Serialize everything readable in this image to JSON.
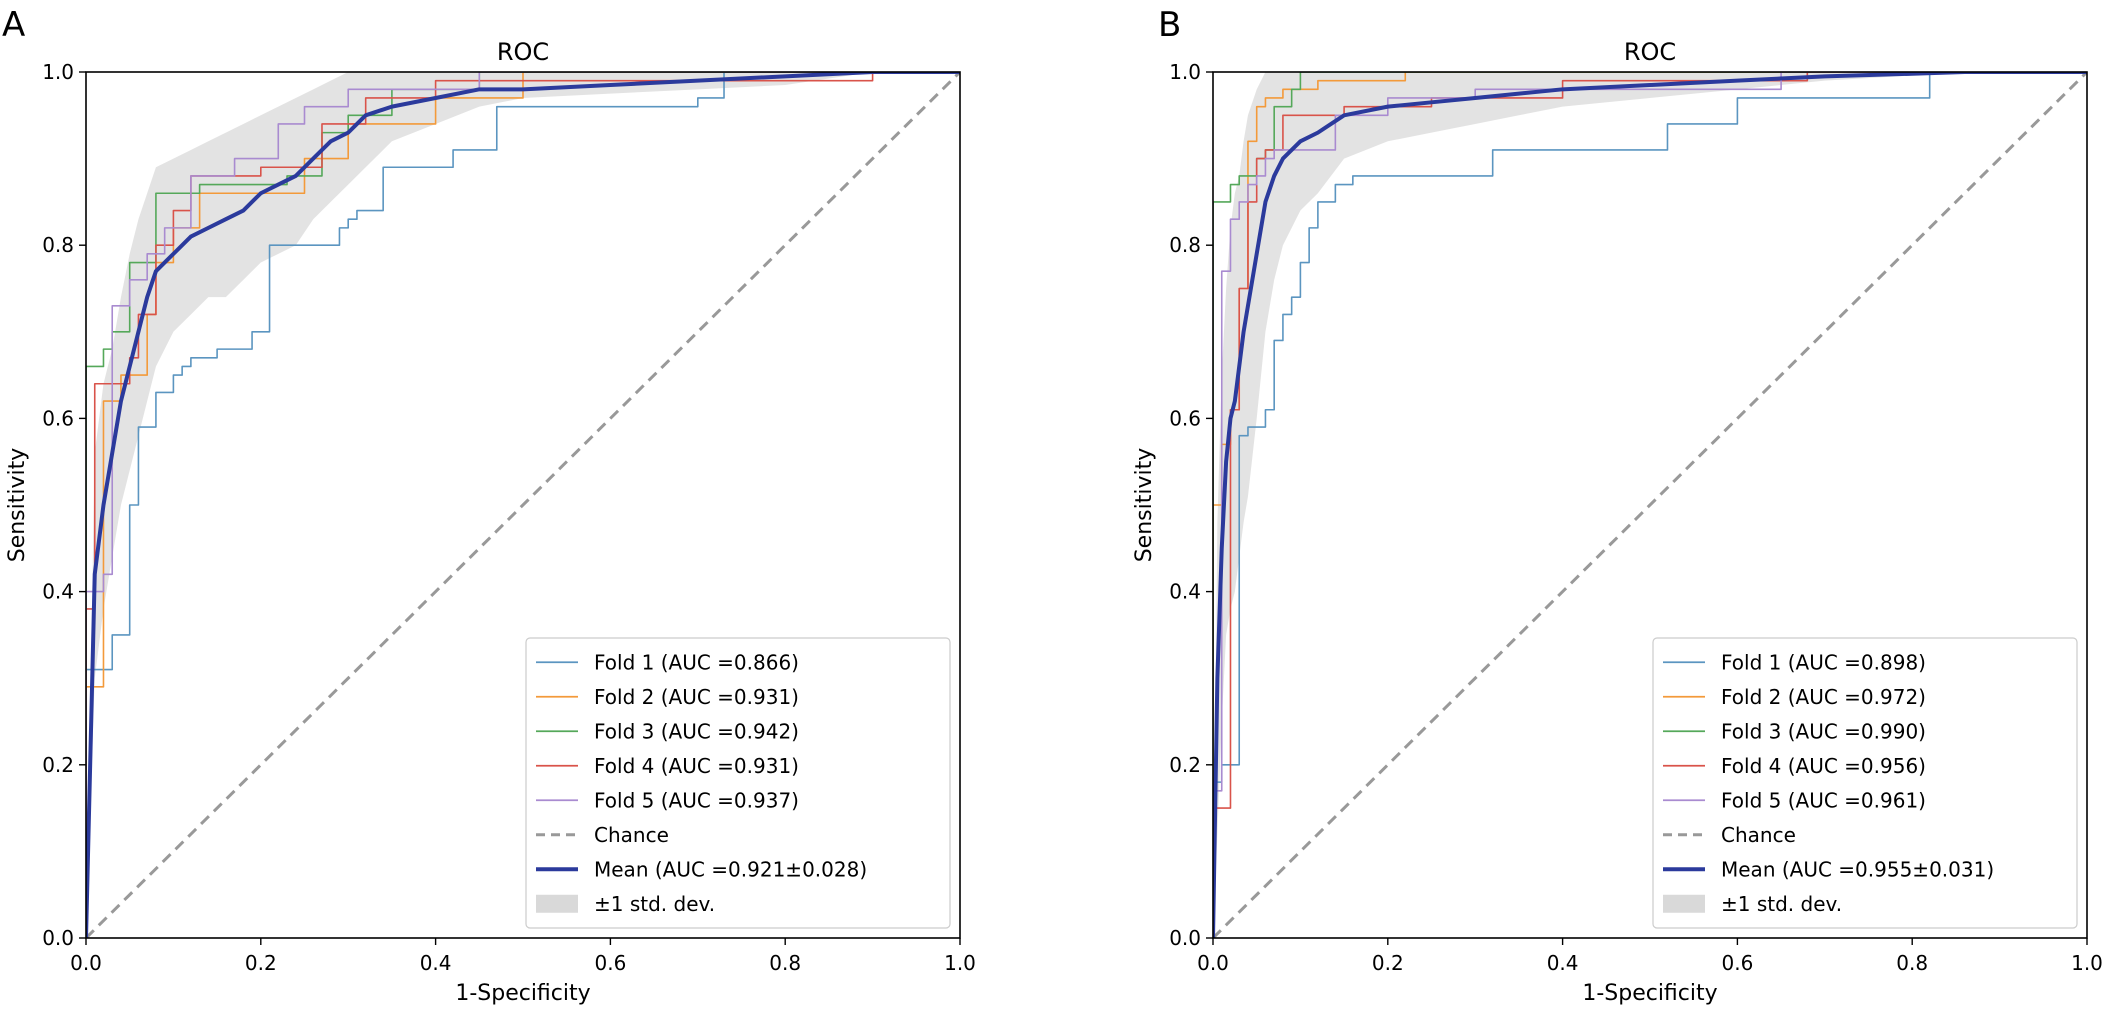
{
  "colors": {
    "fold1": "#5b95c0",
    "fold2": "#f39a3a",
    "fold3": "#55a85a",
    "fold4": "#d9534a",
    "fold5": "#a98bd0",
    "chance": "#999999",
    "mean": "#2b3a9c",
    "band": "#d9d9d9"
  },
  "chart_data": [
    {
      "panel_label": "A",
      "type": "line",
      "title": "ROC",
      "xlabel": "1-Specificity",
      "ylabel": "Sensitivity",
      "xlim": [
        0,
        1
      ],
      "ylim": [
        0,
        1
      ],
      "xticks": [
        "0.0",
        "0.2",
        "0.4",
        "0.6",
        "0.8",
        "1.0"
      ],
      "yticks": [
        "0.0",
        "0.2",
        "0.4",
        "0.6",
        "0.8",
        "1.0"
      ],
      "grid": false,
      "legend_position": "bottom-right",
      "series": [
        {
          "name": "Fold 1 (AUC =0.866)",
          "color_key": "fold1",
          "x": [
            0,
            0,
            0.03,
            0.03,
            0.05,
            0.05,
            0.06,
            0.06,
            0.08,
            0.08,
            0.1,
            0.1,
            0.11,
            0.11,
            0.12,
            0.12,
            0.15,
            0.15,
            0.19,
            0.19,
            0.21,
            0.21,
            0.29,
            0.29,
            0.3,
            0.3,
            0.31,
            0.31,
            0.34,
            0.34,
            0.42,
            0.42,
            0.47,
            0.47,
            0.7,
            0.7,
            0.73,
            0.73,
            1.0
          ],
          "y": [
            0,
            0.31,
            0.31,
            0.35,
            0.35,
            0.5,
            0.5,
            0.59,
            0.59,
            0.63,
            0.63,
            0.65,
            0.65,
            0.66,
            0.66,
            0.67,
            0.67,
            0.68,
            0.68,
            0.7,
            0.7,
            0.8,
            0.8,
            0.82,
            0.82,
            0.83,
            0.83,
            0.84,
            0.84,
            0.89,
            0.89,
            0.91,
            0.91,
            0.96,
            0.96,
            0.97,
            0.97,
            1.0,
            1.0
          ]
        },
        {
          "name": "Fold 2 (AUC =0.931)",
          "color_key": "fold2",
          "x": [
            0,
            0,
            0.02,
            0.02,
            0.04,
            0.04,
            0.07,
            0.07,
            0.08,
            0.08,
            0.1,
            0.1,
            0.13,
            0.13,
            0.25,
            0.25,
            0.3,
            0.3,
            0.4,
            0.4,
            0.5,
            0.5,
            1.0
          ],
          "y": [
            0,
            0.29,
            0.29,
            0.62,
            0.62,
            0.65,
            0.65,
            0.72,
            0.72,
            0.78,
            0.78,
            0.82,
            0.82,
            0.86,
            0.86,
            0.9,
            0.9,
            0.94,
            0.94,
            0.97,
            0.97,
            1.0,
            1.0
          ]
        },
        {
          "name": "Fold 3 (AUC =0.942)",
          "color_key": "fold3",
          "x": [
            0,
            0,
            0.02,
            0.02,
            0.03,
            0.03,
            0.05,
            0.05,
            0.08,
            0.08,
            0.13,
            0.13,
            0.23,
            0.23,
            0.27,
            0.27,
            0.3,
            0.3,
            0.35,
            0.35,
            0.45,
            0.45,
            1.0
          ],
          "y": [
            0,
            0.66,
            0.66,
            0.68,
            0.68,
            0.7,
            0.7,
            0.78,
            0.78,
            0.86,
            0.86,
            0.87,
            0.87,
            0.88,
            0.88,
            0.93,
            0.93,
            0.95,
            0.95,
            0.98,
            0.98,
            1.0,
            1.0
          ]
        },
        {
          "name": "Fold 4 (AUC =0.931)",
          "color_key": "fold4",
          "x": [
            0,
            0,
            0.01,
            0.01,
            0.05,
            0.05,
            0.06,
            0.06,
            0.08,
            0.08,
            0.1,
            0.1,
            0.12,
            0.12,
            0.2,
            0.2,
            0.27,
            0.27,
            0.32,
            0.32,
            0.4,
            0.4,
            0.9,
            0.9,
            1.0
          ],
          "y": [
            0,
            0.38,
            0.38,
            0.64,
            0.64,
            0.67,
            0.67,
            0.72,
            0.72,
            0.8,
            0.8,
            0.84,
            0.84,
            0.88,
            0.88,
            0.89,
            0.89,
            0.94,
            0.94,
            0.97,
            0.97,
            0.99,
            0.99,
            1.0,
            1.0
          ]
        },
        {
          "name": "Fold 5 (AUC =0.937)",
          "color_key": "fold5",
          "x": [
            0,
            0,
            0.02,
            0.02,
            0.03,
            0.03,
            0.05,
            0.05,
            0.07,
            0.07,
            0.09,
            0.09,
            0.12,
            0.12,
            0.17,
            0.17,
            0.22,
            0.22,
            0.25,
            0.25,
            0.3,
            0.3,
            0.45,
            0.45,
            1.0
          ],
          "y": [
            0,
            0.4,
            0.4,
            0.42,
            0.42,
            0.73,
            0.73,
            0.76,
            0.76,
            0.79,
            0.79,
            0.82,
            0.82,
            0.88,
            0.88,
            0.9,
            0.9,
            0.94,
            0.94,
            0.96,
            0.96,
            0.98,
            0.98,
            1.0,
            1.0
          ]
        },
        {
          "name": "Chance",
          "color_key": "chance",
          "dashed": true,
          "x": [
            0,
            1
          ],
          "y": [
            0,
            1
          ]
        },
        {
          "name": "Mean (AUC =0.921±0.028)",
          "color_key": "mean",
          "x": [
            0,
            0.01,
            0.02,
            0.03,
            0.04,
            0.05,
            0.06,
            0.07,
            0.08,
            0.1,
            0.12,
            0.14,
            0.16,
            0.18,
            0.2,
            0.22,
            0.24,
            0.26,
            0.28,
            0.3,
            0.32,
            0.35,
            0.4,
            0.45,
            0.5,
            0.6,
            0.7,
            0.8,
            0.9,
            1.0
          ],
          "y": [
            0,
            0.42,
            0.5,
            0.56,
            0.62,
            0.66,
            0.7,
            0.74,
            0.77,
            0.79,
            0.81,
            0.82,
            0.83,
            0.84,
            0.86,
            0.87,
            0.88,
            0.9,
            0.92,
            0.93,
            0.95,
            0.96,
            0.97,
            0.98,
            0.98,
            0.985,
            0.99,
            0.995,
            1.0,
            1.0
          ]
        },
        {
          "name": "±1 std. dev.",
          "color_key": "band",
          "band": true,
          "x": [
            0,
            0.01,
            0.02,
            0.03,
            0.04,
            0.05,
            0.06,
            0.07,
            0.08,
            0.1,
            0.12,
            0.14,
            0.16,
            0.18,
            0.2,
            0.22,
            0.24,
            0.26,
            0.28,
            0.3,
            0.32,
            0.35,
            0.4,
            0.45,
            0.5,
            0.6,
            0.7,
            0.8,
            0.9,
            1.0
          ],
          "upper": [
            0,
            0.56,
            0.64,
            0.68,
            0.74,
            0.79,
            0.83,
            0.86,
            0.89,
            0.9,
            0.91,
            0.92,
            0.93,
            0.94,
            0.95,
            0.96,
            0.97,
            0.98,
            0.99,
            1.0,
            1.0,
            1.0,
            1.0,
            1.0,
            1.0,
            1.0,
            1.0,
            1.0,
            1.0,
            1.0
          ],
          "lower": [
            0,
            0.3,
            0.38,
            0.44,
            0.5,
            0.54,
            0.58,
            0.62,
            0.66,
            0.7,
            0.72,
            0.74,
            0.74,
            0.76,
            0.78,
            0.79,
            0.8,
            0.83,
            0.85,
            0.87,
            0.89,
            0.92,
            0.94,
            0.96,
            0.97,
            0.975,
            0.98,
            0.985,
            1.0,
            1.0
          ]
        }
      ]
    },
    {
      "panel_label": "B",
      "type": "line",
      "title": "ROC",
      "xlabel": "1-Specificity",
      "ylabel": "Sensitivity",
      "xlim": [
        0,
        1
      ],
      "ylim": [
        0,
        1
      ],
      "xticks": [
        "0.0",
        "0.2",
        "0.4",
        "0.6",
        "0.8",
        "1.0"
      ],
      "yticks": [
        "0.0",
        "0.2",
        "0.4",
        "0.6",
        "0.8",
        "1.0"
      ],
      "grid": false,
      "legend_position": "bottom-right",
      "series": [
        {
          "name": "Fold 1 (AUC =0.898)",
          "color_key": "fold1",
          "x": [
            0,
            0,
            0.01,
            0.01,
            0.03,
            0.03,
            0.04,
            0.04,
            0.06,
            0.06,
            0.07,
            0.07,
            0.08,
            0.08,
            0.09,
            0.09,
            0.1,
            0.1,
            0.11,
            0.11,
            0.12,
            0.12,
            0.14,
            0.14,
            0.16,
            0.16,
            0.32,
            0.32,
            0.52,
            0.52,
            0.6,
            0.6,
            0.82,
            0.82,
            1.0
          ],
          "y": [
            0,
            0.18,
            0.18,
            0.2,
            0.2,
            0.58,
            0.58,
            0.59,
            0.59,
            0.61,
            0.61,
            0.69,
            0.69,
            0.72,
            0.72,
            0.74,
            0.74,
            0.78,
            0.78,
            0.82,
            0.82,
            0.85,
            0.85,
            0.87,
            0.87,
            0.88,
            0.88,
            0.91,
            0.91,
            0.94,
            0.94,
            0.97,
            0.97,
            1.0,
            1.0
          ]
        },
        {
          "name": "Fold 2 (AUC =0.972)",
          "color_key": "fold2",
          "x": [
            0,
            0,
            0.01,
            0.01,
            0.02,
            0.02,
            0.03,
            0.03,
            0.04,
            0.04,
            0.05,
            0.05,
            0.06,
            0.06,
            0.08,
            0.08,
            0.12,
            0.12,
            0.22,
            0.22,
            1.0
          ],
          "y": [
            0,
            0.5,
            0.5,
            0.57,
            0.57,
            0.61,
            0.61,
            0.75,
            0.75,
            0.92,
            0.92,
            0.96,
            0.96,
            0.97,
            0.97,
            0.98,
            0.98,
            0.99,
            0.99,
            1.0,
            1.0
          ]
        },
        {
          "name": "Fold 3 (AUC =0.990)",
          "color_key": "fold3",
          "x": [
            0,
            0,
            0.02,
            0.02,
            0.03,
            0.03,
            0.05,
            0.05,
            0.06,
            0.06,
            0.07,
            0.07,
            0.09,
            0.09,
            0.1,
            0.1,
            1.0
          ],
          "y": [
            0,
            0.85,
            0.85,
            0.87,
            0.87,
            0.88,
            0.88,
            0.9,
            0.9,
            0.91,
            0.91,
            0.96,
            0.96,
            0.98,
            0.98,
            1.0,
            1.0
          ]
        },
        {
          "name": "Fold 4 (AUC =0.956)",
          "color_key": "fold4",
          "x": [
            0,
            0,
            0.02,
            0.02,
            0.03,
            0.03,
            0.04,
            0.04,
            0.05,
            0.05,
            0.06,
            0.06,
            0.08,
            0.08,
            0.15,
            0.15,
            0.25,
            0.25,
            0.4,
            0.4,
            0.68,
            0.68,
            1.0
          ],
          "y": [
            0,
            0.15,
            0.15,
            0.61,
            0.61,
            0.75,
            0.75,
            0.85,
            0.85,
            0.9,
            0.9,
            0.91,
            0.91,
            0.95,
            0.95,
            0.96,
            0.96,
            0.97,
            0.97,
            0.99,
            0.99,
            1.0,
            1.0
          ]
        },
        {
          "name": "Fold 5 (AUC =0.961)",
          "color_key": "fold5",
          "x": [
            0,
            0,
            0.01,
            0.01,
            0.02,
            0.02,
            0.03,
            0.03,
            0.04,
            0.04,
            0.05,
            0.05,
            0.06,
            0.06,
            0.07,
            0.07,
            0.14,
            0.14,
            0.2,
            0.2,
            0.3,
            0.3,
            0.65,
            0.65,
            1.0
          ],
          "y": [
            0,
            0.17,
            0.17,
            0.77,
            0.77,
            0.83,
            0.83,
            0.85,
            0.85,
            0.87,
            0.87,
            0.88,
            0.88,
            0.9,
            0.9,
            0.91,
            0.91,
            0.95,
            0.95,
            0.97,
            0.97,
            0.98,
            0.98,
            1.0,
            1.0
          ]
        },
        {
          "name": "Chance",
          "color_key": "chance",
          "dashed": true,
          "x": [
            0,
            1
          ],
          "y": [
            0,
            1
          ]
        },
        {
          "name": "Mean (AUC =0.955±0.031)",
          "color_key": "mean",
          "x": [
            0,
            0.005,
            0.01,
            0.015,
            0.02,
            0.025,
            0.03,
            0.035,
            0.04,
            0.05,
            0.06,
            0.07,
            0.08,
            0.09,
            0.1,
            0.12,
            0.15,
            0.2,
            0.25,
            0.3,
            0.35,
            0.4,
            0.5,
            0.6,
            0.7,
            0.8,
            0.86,
            1.0
          ],
          "y": [
            0,
            0.3,
            0.45,
            0.55,
            0.6,
            0.62,
            0.66,
            0.7,
            0.73,
            0.79,
            0.85,
            0.88,
            0.9,
            0.91,
            0.92,
            0.93,
            0.95,
            0.96,
            0.965,
            0.97,
            0.975,
            0.98,
            0.985,
            0.99,
            0.995,
            0.998,
            1.0,
            1.0
          ]
        },
        {
          "name": "±1 std. dev.",
          "color_key": "band",
          "band": true,
          "x": [
            0,
            0.005,
            0.01,
            0.015,
            0.02,
            0.025,
            0.03,
            0.035,
            0.04,
            0.05,
            0.06,
            0.07,
            0.08,
            0.09,
            0.1,
            0.12,
            0.15,
            0.2,
            0.25,
            0.3,
            0.35,
            0.4,
            0.5,
            0.6,
            0.7,
            0.8,
            0.86,
            1.0
          ],
          "upper": [
            0,
            0.48,
            0.65,
            0.75,
            0.82,
            0.86,
            0.88,
            0.92,
            0.95,
            0.98,
            1.0,
            1.0,
            1.0,
            1.0,
            1.0,
            1.0,
            1.0,
            1.0,
            1.0,
            1.0,
            1.0,
            1.0,
            1.0,
            1.0,
            1.0,
            1.0,
            1.0,
            1.0
          ],
          "lower": [
            0,
            0.12,
            0.25,
            0.35,
            0.38,
            0.4,
            0.44,
            0.48,
            0.51,
            0.6,
            0.7,
            0.76,
            0.8,
            0.82,
            0.84,
            0.86,
            0.9,
            0.92,
            0.93,
            0.94,
            0.95,
            0.96,
            0.97,
            0.98,
            0.99,
            0.996,
            1.0,
            1.0
          ]
        }
      ]
    }
  ]
}
